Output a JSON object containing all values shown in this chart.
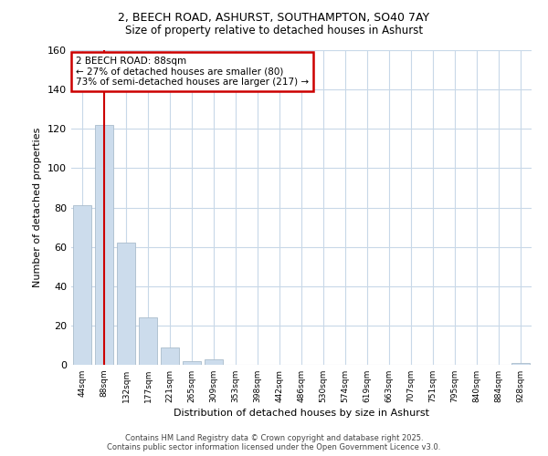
{
  "title1": "2, BEECH ROAD, ASHURST, SOUTHAMPTON, SO40 7AY",
  "title2": "Size of property relative to detached houses in Ashurst",
  "xlabel": "Distribution of detached houses by size in Ashurst",
  "ylabel": "Number of detached properties",
  "categories": [
    "44sqm",
    "88sqm",
    "132sqm",
    "177sqm",
    "221sqm",
    "265sqm",
    "309sqm",
    "353sqm",
    "398sqm",
    "442sqm",
    "486sqm",
    "530sqm",
    "574sqm",
    "619sqm",
    "663sqm",
    "707sqm",
    "751sqm",
    "795sqm",
    "840sqm",
    "884sqm",
    "928sqm"
  ],
  "values": [
    81,
    122,
    62,
    24,
    9,
    2,
    3,
    0,
    0,
    0,
    0,
    0,
    0,
    0,
    0,
    0,
    0,
    0,
    0,
    0,
    1
  ],
  "bar_color": "#ccdcec",
  "bar_edge_color": "#aabccc",
  "vline_x_index": 1,
  "vline_color": "#cc0000",
  "annotation_line1": "2 BEECH ROAD: 88sqm",
  "annotation_line2": "← 27% of detached houses are smaller (80)",
  "annotation_line3": "73% of semi-detached houses are larger (217) →",
  "annotation_box_color": "#ffffff",
  "annotation_box_edge": "#cc0000",
  "ylim": [
    0,
    160
  ],
  "yticks": [
    0,
    20,
    40,
    60,
    80,
    100,
    120,
    140,
    160
  ],
  "background_color": "#ffffff",
  "grid_color": "#c8d8e8",
  "footer1": "Contains HM Land Registry data © Crown copyright and database right 2025.",
  "footer2": "Contains public sector information licensed under the Open Government Licence v3.0."
}
